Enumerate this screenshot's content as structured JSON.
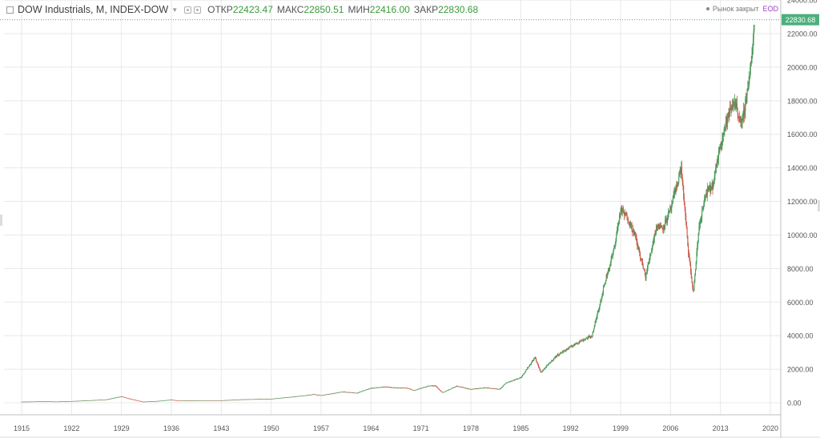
{
  "header": {
    "title": "DOW Industrials, M, INDEX-DOW",
    "open_label": "ОТКР",
    "open_value": "22423.47",
    "high_label": "МАКС",
    "high_value": "22850.51",
    "low_label": "МИН",
    "low_value": "22416.00",
    "close_label": "ЗАКР",
    "close_value": "22830.68",
    "market_status": "Рынок закрыт",
    "eod_label": "EOD"
  },
  "price_badge": "22830.68",
  "colors": {
    "up": "#4a9a5a",
    "down": "#c95a4a",
    "grid": "#e8e8e8",
    "axis_text": "#555555",
    "badge": "#4caf7d"
  },
  "chart_data": {
    "type": "candlestick",
    "title": "DOW Industrials, M, INDEX-DOW",
    "xlabel": "",
    "ylabel": "",
    "x_ticks": [
      "1915",
      "1922",
      "1929",
      "1936",
      "1943",
      "1950",
      "1957",
      "1964",
      "1971",
      "1978",
      "1985",
      "1992",
      "1999",
      "2006",
      "2013",
      "2020"
    ],
    "y_ticks": [
      "0.00",
      "2000.00",
      "4000.00",
      "6000.00",
      "8000.00",
      "10000.00",
      "12000.00",
      "14000.00",
      "16000.00",
      "18000.00",
      "20000.00",
      "22000.00",
      "24000.00"
    ],
    "xlim": [
      1914,
      2022
    ],
    "ylim": [
      -1000,
      24000
    ],
    "grid": true,
    "series": [
      {
        "values": [
          [
            1915.0,
            60
          ],
          [
            1918.0,
            80
          ],
          [
            1920.0,
            70
          ],
          [
            1922.0,
            95
          ],
          [
            1925.0,
            150
          ],
          [
            1927.0,
            200
          ],
          [
            1929.0,
            380
          ],
          [
            1930.0,
            250
          ],
          [
            1932.0,
            60
          ],
          [
            1934.0,
            100
          ],
          [
            1936.0,
            180
          ],
          [
            1937.0,
            120
          ],
          [
            1940.0,
            140
          ],
          [
            1943.0,
            140
          ],
          [
            1946.0,
            200
          ],
          [
            1950.0,
            230
          ],
          [
            1954.0,
            400
          ],
          [
            1956.0,
            500
          ],
          [
            1957.0,
            440
          ],
          [
            1960.0,
            650
          ],
          [
            1962.0,
            580
          ],
          [
            1964.0,
            870
          ],
          [
            1966.0,
            950
          ],
          [
            1967.0,
            900
          ],
          [
            1969.0,
            880
          ],
          [
            1970.0,
            730
          ],
          [
            1972.0,
            1000
          ],
          [
            1973.0,
            1020
          ],
          [
            1974.0,
            600
          ],
          [
            1976.0,
            1000
          ],
          [
            1978.0,
            800
          ],
          [
            1980.0,
            900
          ],
          [
            1982.0,
            800
          ],
          [
            1983.0,
            1200
          ],
          [
            1985.0,
            1500
          ],
          [
            1987.0,
            2700
          ],
          [
            1987.8,
            1800
          ],
          [
            1990.0,
            2800
          ],
          [
            1993.0,
            3600
          ],
          [
            1995.0,
            4000
          ],
          [
            1997.0,
            7500
          ],
          [
            1998.0,
            9000
          ],
          [
            1999.0,
            11500
          ],
          [
            2000.0,
            11000
          ],
          [
            2001.0,
            10000
          ],
          [
            2002.5,
            7500
          ],
          [
            2003.0,
            8500
          ],
          [
            2004.0,
            10500
          ],
          [
            2005.0,
            10500
          ],
          [
            2006.0,
            11500
          ],
          [
            2007.5,
            14000
          ],
          [
            2008.5,
            9000
          ],
          [
            2009.2,
            6500
          ],
          [
            2010.0,
            10500
          ],
          [
            2011.0,
            12500
          ],
          [
            2012.0,
            13000
          ],
          [
            2013.0,
            15500
          ],
          [
            2014.0,
            17000
          ],
          [
            2015.0,
            18000
          ],
          [
            2016.0,
            16500
          ],
          [
            2016.9,
            19000
          ],
          [
            2017.5,
            21000
          ],
          [
            2017.8,
            22830
          ]
        ]
      }
    ]
  }
}
